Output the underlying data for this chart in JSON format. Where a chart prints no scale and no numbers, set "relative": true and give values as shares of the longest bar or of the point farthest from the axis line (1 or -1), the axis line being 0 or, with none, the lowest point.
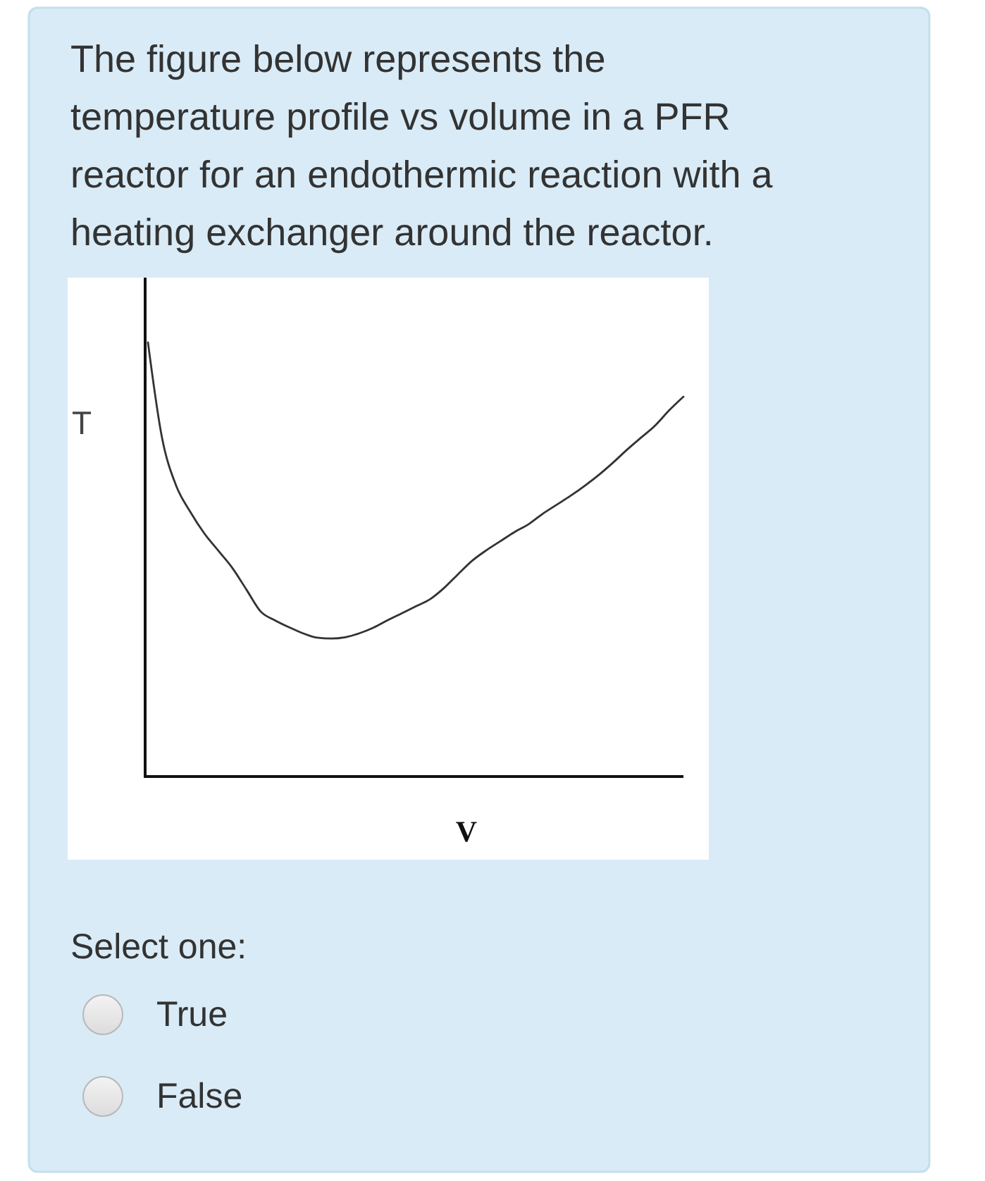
{
  "chart_data": {
    "type": "line",
    "title": "The figure below represents the temperature profile vs volume in a PFR reactor for an endothermic reaction with a heating exchanger around the reactor.",
    "xlabel": "V",
    "ylabel": "T",
    "relative": true,
    "categories": [
      null,
      null,
      null,
      null,
      null,
      null,
      null,
      null,
      null,
      null,
      null,
      null,
      null,
      null,
      null,
      null,
      null,
      null,
      null,
      null,
      null,
      null,
      null,
      null,
      null,
      null,
      null,
      null,
      null,
      null,
      null,
      null,
      null,
      null,
      null,
      null,
      null,
      null,
      null
    ],
    "series": [
      {
        "color": "#333333",
        "values": [
          1.0,
          0.78,
          0.67,
          0.61,
          0.56,
          0.52,
          0.48,
          0.43,
          0.38,
          0.36,
          0.344,
          0.33,
          0.32,
          0.318,
          0.321,
          0.33,
          0.343,
          0.36,
          0.376,
          0.392,
          0.408,
          0.434,
          0.466,
          0.497,
          0.521,
          0.542,
          0.563,
          0.581,
          0.605,
          0.626,
          0.647,
          0.67,
          0.695,
          0.723,
          0.753,
          0.781,
          0.809,
          0.844,
          0.875
        ]
      }
    ],
    "annotations": [
      "Select one:",
      "True",
      "False"
    ]
  }
}
